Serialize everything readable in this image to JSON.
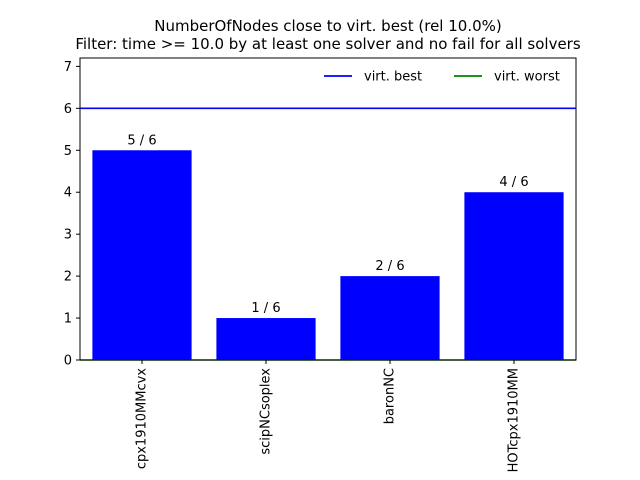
{
  "chart_data": {
    "type": "bar",
    "title": "NumberOfNodes close to virt. best (rel 10.0%)",
    "subtitle": "Filter: time >= 10.0 by at least one solver and no fail for all solvers",
    "xlabel": "",
    "ylabel": "",
    "categories": [
      "cpx1910MMcvx",
      "scipNCsoplex",
      "baronNC",
      "HOTcpx1910MM"
    ],
    "values": [
      5,
      1,
      2,
      4
    ],
    "bar_labels": [
      "5 / 6",
      "1 / 6",
      "2 / 6",
      "4 / 6"
    ],
    "bar_color": "#0000ff",
    "ylim": [
      0,
      7.2
    ],
    "yticks": [
      "0",
      "1",
      "2",
      "3",
      "4",
      "5",
      "6",
      "7"
    ],
    "grid": false,
    "legend_position": "top-right",
    "reference_lines": [
      {
        "name": "virt. best",
        "value": 6,
        "color": "#0000ff"
      },
      {
        "name": "virt. worst",
        "value": 0,
        "color": "#008000"
      }
    ]
  }
}
